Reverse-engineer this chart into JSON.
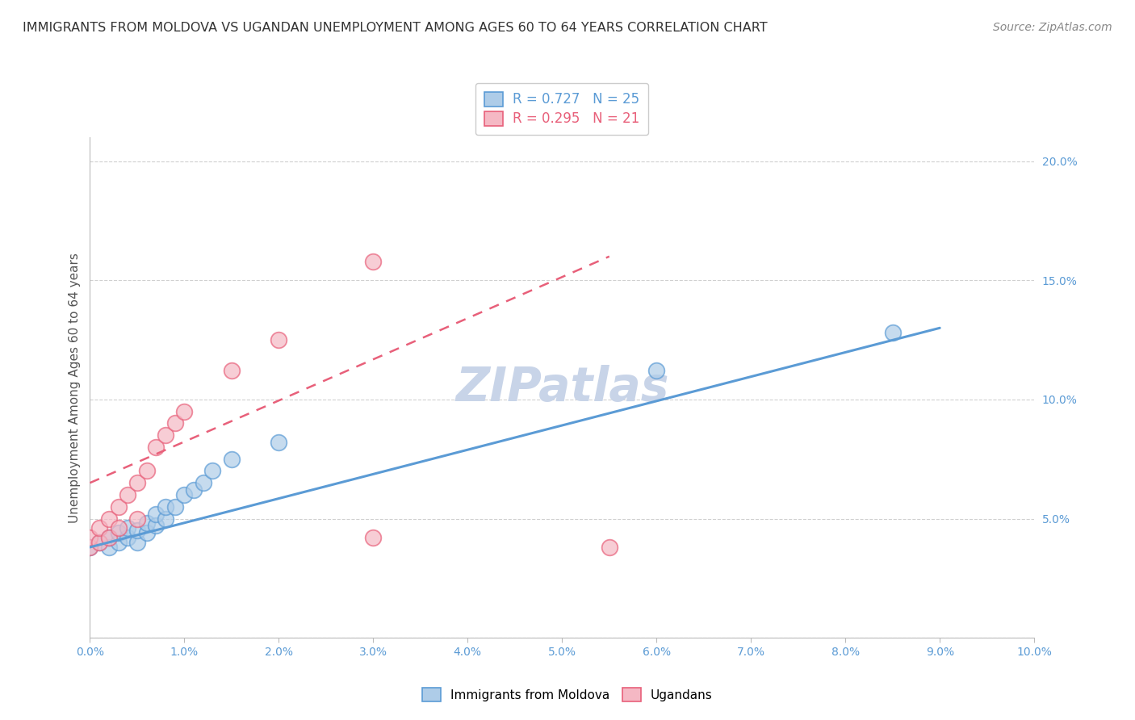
{
  "title": "IMMIGRANTS FROM MOLDOVA VS UGANDAN UNEMPLOYMENT AMONG AGES 60 TO 64 YEARS CORRELATION CHART",
  "source": "Source: ZipAtlas.com",
  "ylabel": "Unemployment Among Ages 60 to 64 years",
  "xlim": [
    0.0,
    0.1
  ],
  "ylim": [
    0.0,
    0.21
  ],
  "legend_entries": [
    {
      "label": "R = 0.727   N = 25",
      "color": "#5b9bd5"
    },
    {
      "label": "R = 0.295   N = 21",
      "color": "#e8607a"
    }
  ],
  "moldova_x": [
    0.0,
    0.001,
    0.002,
    0.002,
    0.003,
    0.003,
    0.004,
    0.004,
    0.005,
    0.005,
    0.006,
    0.006,
    0.007,
    0.007,
    0.008,
    0.008,
    0.009,
    0.01,
    0.011,
    0.012,
    0.013,
    0.015,
    0.02,
    0.06,
    0.085
  ],
  "moldova_y": [
    0.038,
    0.04,
    0.038,
    0.042,
    0.04,
    0.044,
    0.042,
    0.046,
    0.04,
    0.045,
    0.044,
    0.048,
    0.047,
    0.052,
    0.05,
    0.055,
    0.055,
    0.06,
    0.062,
    0.065,
    0.07,
    0.075,
    0.082,
    0.112,
    0.128
  ],
  "uganda_x": [
    0.0,
    0.0,
    0.001,
    0.001,
    0.002,
    0.002,
    0.003,
    0.003,
    0.004,
    0.005,
    0.005,
    0.006,
    0.007,
    0.008,
    0.009,
    0.01,
    0.015,
    0.02,
    0.03,
    0.03,
    0.055
  ],
  "uganda_y": [
    0.038,
    0.042,
    0.04,
    0.046,
    0.042,
    0.05,
    0.046,
    0.055,
    0.06,
    0.05,
    0.065,
    0.07,
    0.08,
    0.085,
    0.09,
    0.095,
    0.112,
    0.125,
    0.158,
    0.042,
    0.038
  ],
  "moldova_line_x": [
    0.0,
    0.09
  ],
  "moldova_line_y": [
    0.038,
    0.13
  ],
  "uganda_line_x": [
    0.0,
    0.055
  ],
  "uganda_line_y": [
    0.065,
    0.16
  ],
  "moldova_color": "#5b9bd5",
  "moldova_fill": "#aecce8",
  "uganda_color": "#e8607a",
  "uganda_fill": "#f5b8c4",
  "bg_color": "#ffffff",
  "grid_color": "#d0d0d0",
  "watermark_color": "#c8d4e8",
  "title_color": "#333333",
  "source_color": "#888888",
  "tick_color": "#5b9bd5",
  "ylabel_color": "#555555"
}
